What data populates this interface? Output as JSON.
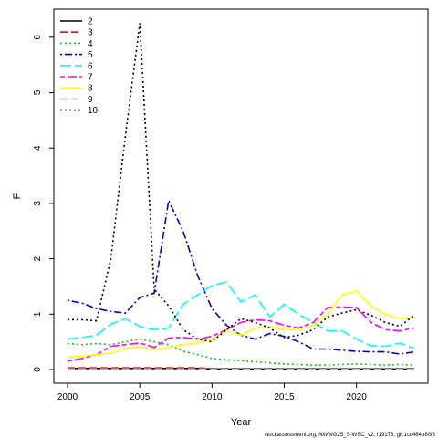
{
  "chart_data": {
    "type": "line",
    "xlabel": "Year",
    "ylabel": "F",
    "xlim": [
      2000,
      2024
    ],
    "ylim": [
      0,
      6.5
    ],
    "x_ticks": [
      2000,
      2005,
      2010,
      2015,
      2020
    ],
    "y_ticks": [
      0,
      1,
      2,
      3,
      4,
      5,
      6
    ],
    "grid": false,
    "legend_position": "top-left",
    "x": [
      2000,
      2001,
      2002,
      2003,
      2004,
      2005,
      2006,
      2007,
      2008,
      2009,
      2010,
      2011,
      2012,
      2013,
      2014,
      2015,
      2016,
      2017,
      2018,
      2019,
      2020,
      2021,
      2022,
      2023,
      2024
    ],
    "series": [
      {
        "name": "2",
        "color": "#000000",
        "dash": "solid",
        "values": [
          0.02,
          0.02,
          0.02,
          0.02,
          0.02,
          0.02,
          0.02,
          0.02,
          0.02,
          0.02,
          0.01,
          0.01,
          0.01,
          0.01,
          0.01,
          0.01,
          0.01,
          0.01,
          0.01,
          0.01,
          0.01,
          0.01,
          0.01,
          0.01,
          0.01
        ]
      },
      {
        "name": "3",
        "color": "#ff0000",
        "dash": "dashed",
        "values": [
          0.03,
          0.03,
          0.03,
          0.03,
          0.03,
          0.03,
          0.03,
          0.03,
          0.03,
          0.03,
          0.02,
          0.02,
          0.02,
          0.02,
          0.02,
          0.02,
          0.02,
          0.02,
          0.02,
          0.02,
          0.02,
          0.02,
          0.02,
          0.02,
          0.02
        ]
      },
      {
        "name": "4",
        "color": "#00cd00",
        "dash": "dotted",
        "values": [
          0.47,
          0.45,
          0.47,
          0.45,
          0.5,
          0.55,
          0.5,
          0.45,
          0.33,
          0.27,
          0.2,
          0.18,
          0.16,
          0.14,
          0.12,
          0.1,
          0.09,
          0.08,
          0.08,
          0.09,
          0.1,
          0.09,
          0.08,
          0.09,
          0.08
        ]
      },
      {
        "name": "5",
        "color": "#0000cd",
        "dash": "dotdash",
        "values": [
          1.25,
          1.2,
          1.1,
          1.05,
          1.02,
          1.3,
          1.38,
          3.05,
          2.5,
          1.7,
          1.1,
          0.8,
          0.62,
          0.55,
          0.65,
          0.6,
          0.5,
          0.37,
          0.37,
          0.35,
          0.33,
          0.32,
          0.32,
          0.28,
          0.32
        ]
      },
      {
        "name": "6",
        "color": "#00ffff",
        "dash": "longdash",
        "values": [
          0.55,
          0.58,
          0.62,
          0.82,
          0.92,
          0.78,
          0.72,
          0.75,
          1.18,
          1.35,
          1.52,
          1.58,
          1.22,
          1.35,
          0.95,
          1.18,
          1.0,
          0.85,
          0.7,
          0.7,
          0.55,
          0.43,
          0.42,
          0.48,
          0.38
        ]
      },
      {
        "name": "7",
        "color": "#ff00ff",
        "dash": "twodash",
        "values": [
          0.15,
          0.2,
          0.27,
          0.42,
          0.45,
          0.48,
          0.4,
          0.57,
          0.58,
          0.55,
          0.6,
          0.72,
          0.85,
          0.9,
          0.88,
          0.8,
          0.75,
          0.85,
          1.12,
          1.13,
          1.12,
          0.85,
          0.72,
          0.7,
          0.75
        ]
      },
      {
        "name": "8",
        "color": "#ffff00",
        "dash": "solid",
        "values": [
          0.22,
          0.24,
          0.27,
          0.3,
          0.38,
          0.42,
          0.35,
          0.4,
          0.45,
          0.48,
          0.55,
          0.7,
          0.62,
          0.75,
          0.78,
          0.72,
          0.72,
          0.8,
          1.0,
          1.35,
          1.42,
          1.15,
          1.0,
          0.92,
          0.95
        ]
      },
      {
        "name": "9",
        "color": "#bebebe",
        "dash": "dashed",
        "values": [
          0.01,
          0.01,
          0.01,
          0.01,
          0.01,
          0.01,
          0.01,
          0.01,
          0.01,
          0.01,
          0.01,
          0.01,
          0.01,
          0.01,
          0.01,
          0.01,
          0.01,
          0.01,
          0.01,
          0.01,
          0.01,
          0.01,
          0.01,
          0.01,
          0.01
        ]
      },
      {
        "name": "10",
        "color": "#000000",
        "dash": "dotted",
        "values": [
          0.9,
          0.9,
          0.88,
          2.0,
          4.2,
          6.25,
          1.45,
          1.15,
          0.72,
          0.55,
          0.5,
          0.72,
          0.92,
          0.85,
          0.75,
          0.58,
          0.62,
          0.72,
          0.95,
          1.02,
          1.08,
          0.98,
          0.85,
          0.78,
          0.98
        ]
      }
    ]
  },
  "footer": {
    "source": "stockassessment.org, NWWG25_S-WSC_v2, r19176, git:1cc464b80f6"
  }
}
